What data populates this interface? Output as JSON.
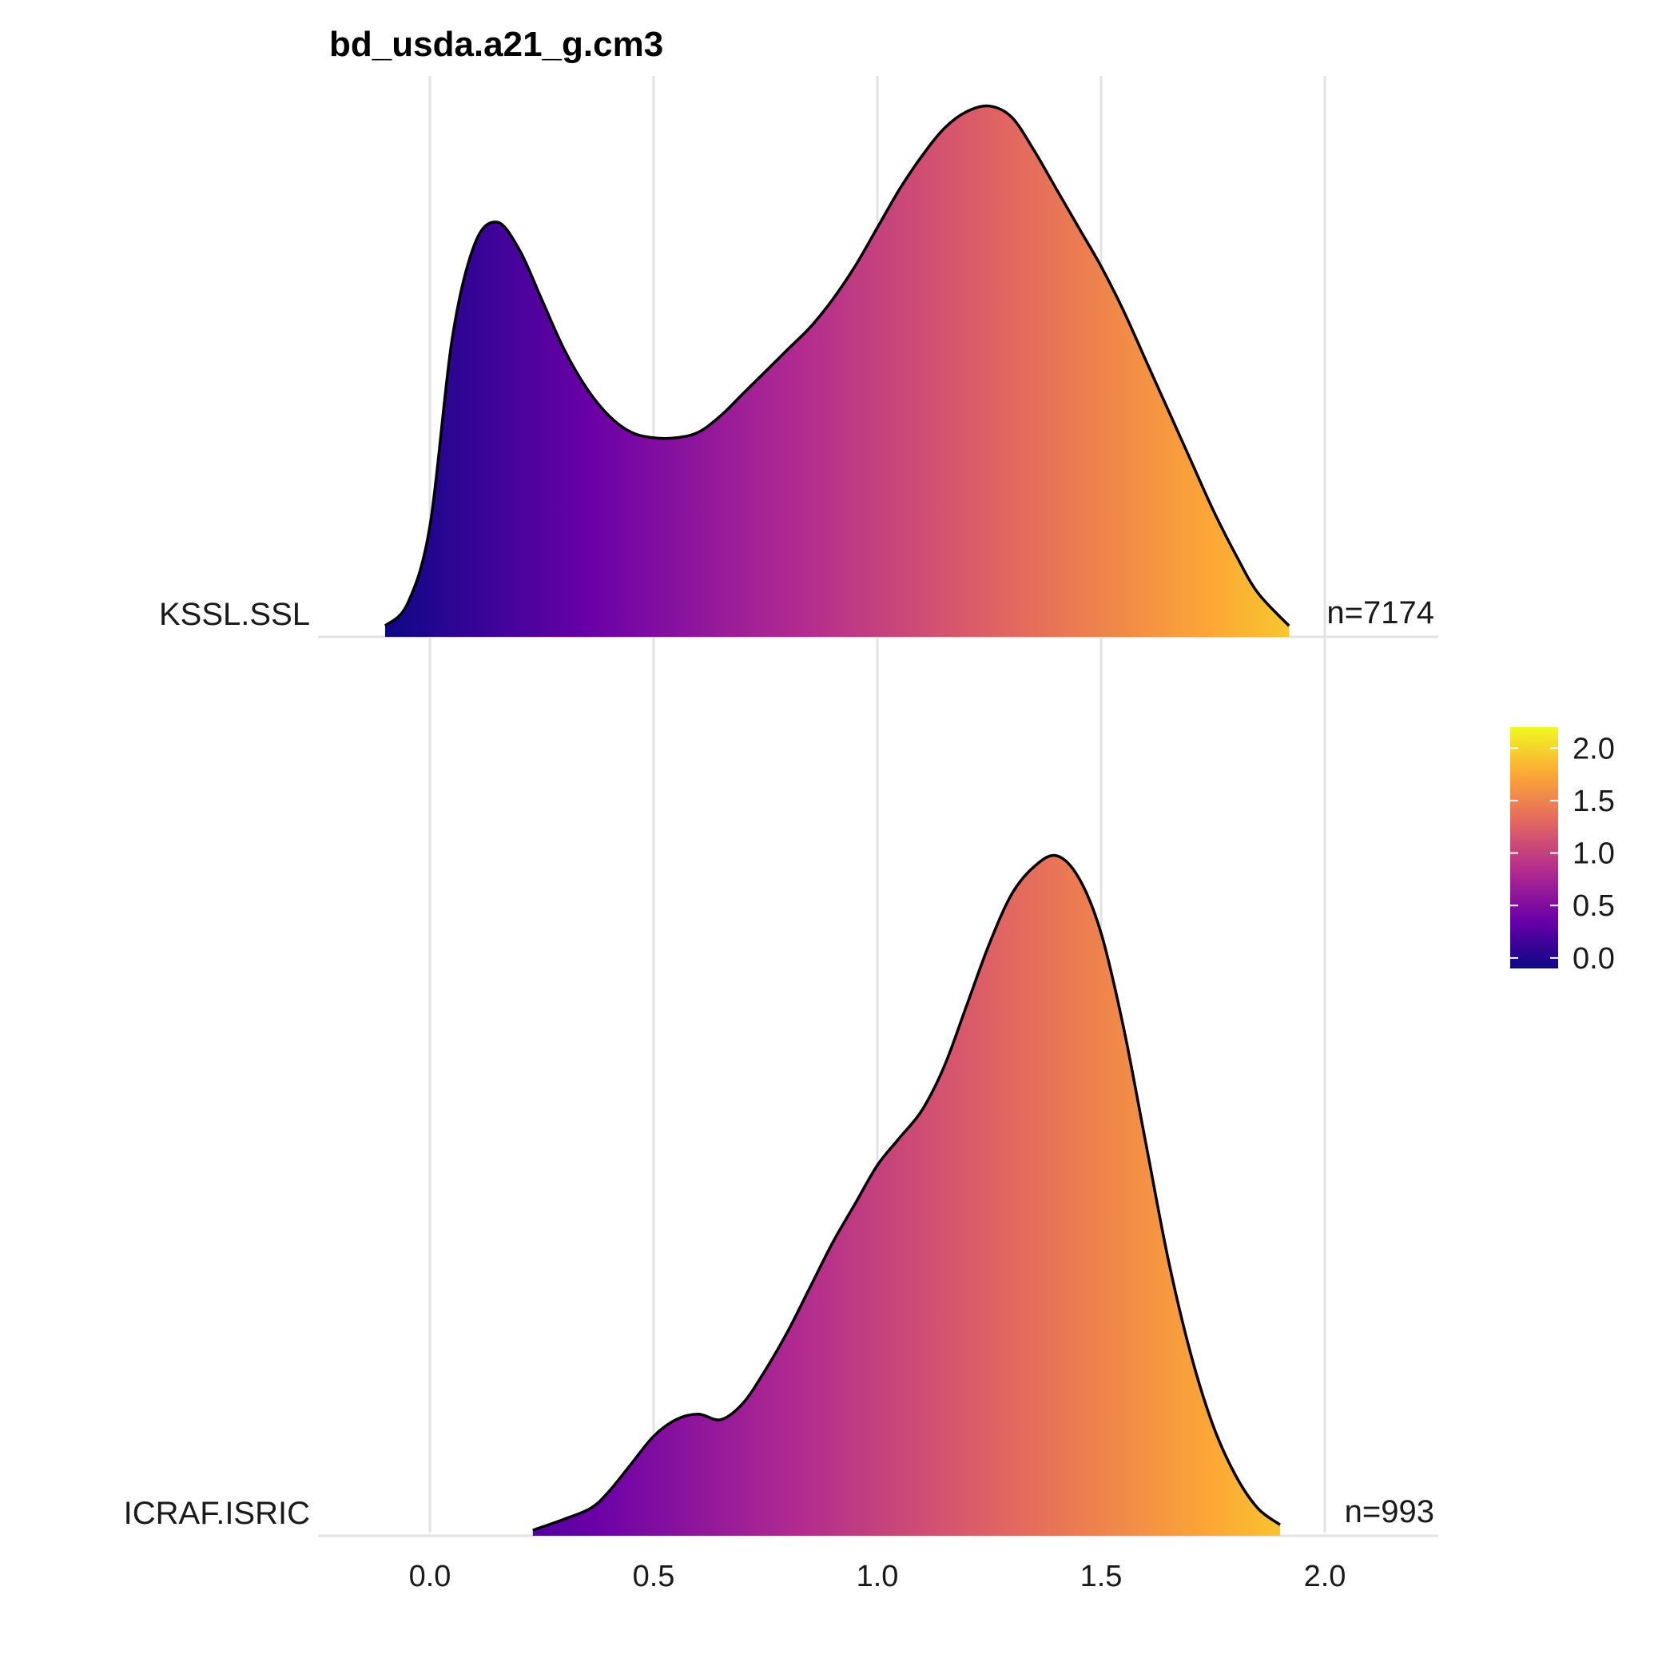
{
  "chart_data": {
    "type": "ridgeline",
    "title": "bd_usda.a21_g.cm3",
    "xlabel": "",
    "ylabel": "",
    "xlim": [
      -0.25,
      2.25
    ],
    "x_ticks": [
      0.0,
      0.5,
      1.0,
      1.5,
      2.0
    ],
    "x_tick_labels": [
      "0.0",
      "0.5",
      "1.0",
      "1.5",
      "2.0"
    ],
    "grid": "vertical major gridlines",
    "colormap": "plasma",
    "legend": {
      "placement": "right",
      "range": [
        -0.1,
        2.2
      ],
      "ticks": [
        0.0,
        0.5,
        1.0,
        1.5,
        2.0
      ],
      "tick_labels": [
        "0.0",
        "0.5",
        "1.0",
        "1.5",
        "2.0"
      ],
      "colors": [
        "#0d0887",
        "#6a00a8",
        "#b12a90",
        "#e16462",
        "#fca636",
        "#f0f921"
      ]
    },
    "series": [
      {
        "name": "KSSL.SSL",
        "count_label": "n=7174",
        "relative_density": [
          [
            -0.1,
            0.02
          ],
          [
            -0.05,
            0.06
          ],
          [
            0.0,
            0.2
          ],
          [
            0.05,
            0.54
          ],
          [
            0.1,
            0.71
          ],
          [
            0.15,
            0.75
          ],
          [
            0.2,
            0.7
          ],
          [
            0.25,
            0.61
          ],
          [
            0.3,
            0.52
          ],
          [
            0.35,
            0.45
          ],
          [
            0.4,
            0.4
          ],
          [
            0.45,
            0.37
          ],
          [
            0.5,
            0.36
          ],
          [
            0.55,
            0.36
          ],
          [
            0.6,
            0.37
          ],
          [
            0.65,
            0.4
          ],
          [
            0.7,
            0.44
          ],
          [
            0.75,
            0.48
          ],
          [
            0.8,
            0.52
          ],
          [
            0.85,
            0.56
          ],
          [
            0.9,
            0.61
          ],
          [
            0.95,
            0.67
          ],
          [
            1.0,
            0.74
          ],
          [
            1.05,
            0.81
          ],
          [
            1.1,
            0.87
          ],
          [
            1.15,
            0.92
          ],
          [
            1.2,
            0.95
          ],
          [
            1.25,
            0.96
          ],
          [
            1.3,
            0.94
          ],
          [
            1.35,
            0.88
          ],
          [
            1.4,
            0.81
          ],
          [
            1.45,
            0.74
          ],
          [
            1.5,
            0.67
          ],
          [
            1.55,
            0.59
          ],
          [
            1.6,
            0.5
          ],
          [
            1.65,
            0.41
          ],
          [
            1.7,
            0.32
          ],
          [
            1.75,
            0.23
          ],
          [
            1.8,
            0.15
          ],
          [
            1.85,
            0.08
          ],
          [
            1.92,
            0.02
          ]
        ]
      },
      {
        "name": "ICRAF.ISRIC",
        "count_label": "n=993",
        "relative_density": [
          [
            0.23,
            0.01
          ],
          [
            0.3,
            0.03
          ],
          [
            0.36,
            0.05
          ],
          [
            0.4,
            0.08
          ],
          [
            0.45,
            0.13
          ],
          [
            0.5,
            0.18
          ],
          [
            0.55,
            0.21
          ],
          [
            0.6,
            0.22
          ],
          [
            0.65,
            0.21
          ],
          [
            0.7,
            0.24
          ],
          [
            0.75,
            0.3
          ],
          [
            0.8,
            0.37
          ],
          [
            0.85,
            0.45
          ],
          [
            0.9,
            0.53
          ],
          [
            0.95,
            0.6
          ],
          [
            1.0,
            0.67
          ],
          [
            1.05,
            0.72
          ],
          [
            1.1,
            0.77
          ],
          [
            1.15,
            0.85
          ],
          [
            1.2,
            0.96
          ],
          [
            1.25,
            1.07
          ],
          [
            1.3,
            1.16
          ],
          [
            1.35,
            1.21
          ],
          [
            1.4,
            1.23
          ],
          [
            1.45,
            1.19
          ],
          [
            1.5,
            1.09
          ],
          [
            1.55,
            0.92
          ],
          [
            1.6,
            0.71
          ],
          [
            1.65,
            0.5
          ],
          [
            1.7,
            0.33
          ],
          [
            1.75,
            0.2
          ],
          [
            1.8,
            0.11
          ],
          [
            1.85,
            0.05
          ],
          [
            1.9,
            0.02
          ]
        ]
      }
    ]
  }
}
